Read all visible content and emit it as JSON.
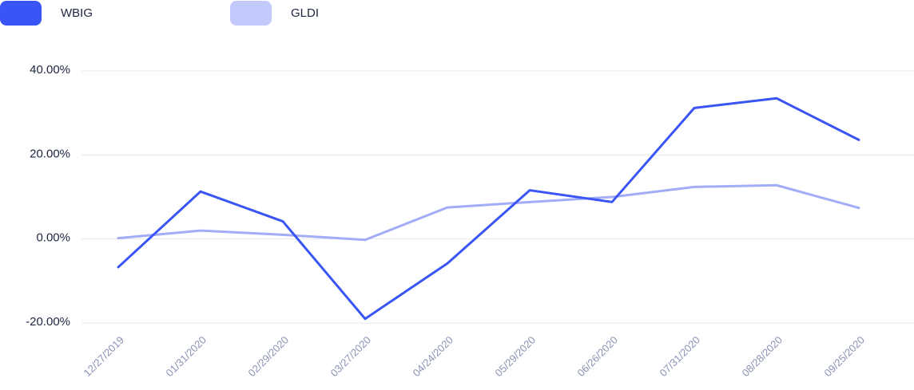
{
  "chart_data": {
    "type": "line",
    "categories": [
      "12/27/2019",
      "01/31/2020",
      "02/29/2020",
      "03/27/2020",
      "04/24/2020",
      "05/29/2020",
      "06/26/2020",
      "07/31/2020",
      "08/28/2020",
      "09/25/2020"
    ],
    "series": [
      {
        "name": "WBIG",
        "color": "#3a55f5",
        "values": [
          -6.7,
          11.3,
          4.2,
          -19.0,
          -5.8,
          11.6,
          8.8,
          31.2,
          33.5,
          23.6
        ]
      },
      {
        "name": "GLDI",
        "color": "#a3adf7",
        "values": [
          0.2,
          2.0,
          1.0,
          -0.2,
          7.5,
          8.8,
          10.0,
          12.4,
          12.8,
          7.4
        ]
      }
    ],
    "yticks": [
      "40.00%",
      "20.00%",
      "0.00%",
      "-20.00%"
    ],
    "ytick_values": [
      40,
      20,
      0,
      -20
    ],
    "ylim": [
      -20,
      40
    ],
    "grid": true,
    "legend_position": "top-left"
  },
  "legend": {
    "items": [
      {
        "label": "WBIG",
        "color": "#3a55f5"
      },
      {
        "label": "GLDI",
        "color": "#c3c9fb"
      }
    ]
  }
}
